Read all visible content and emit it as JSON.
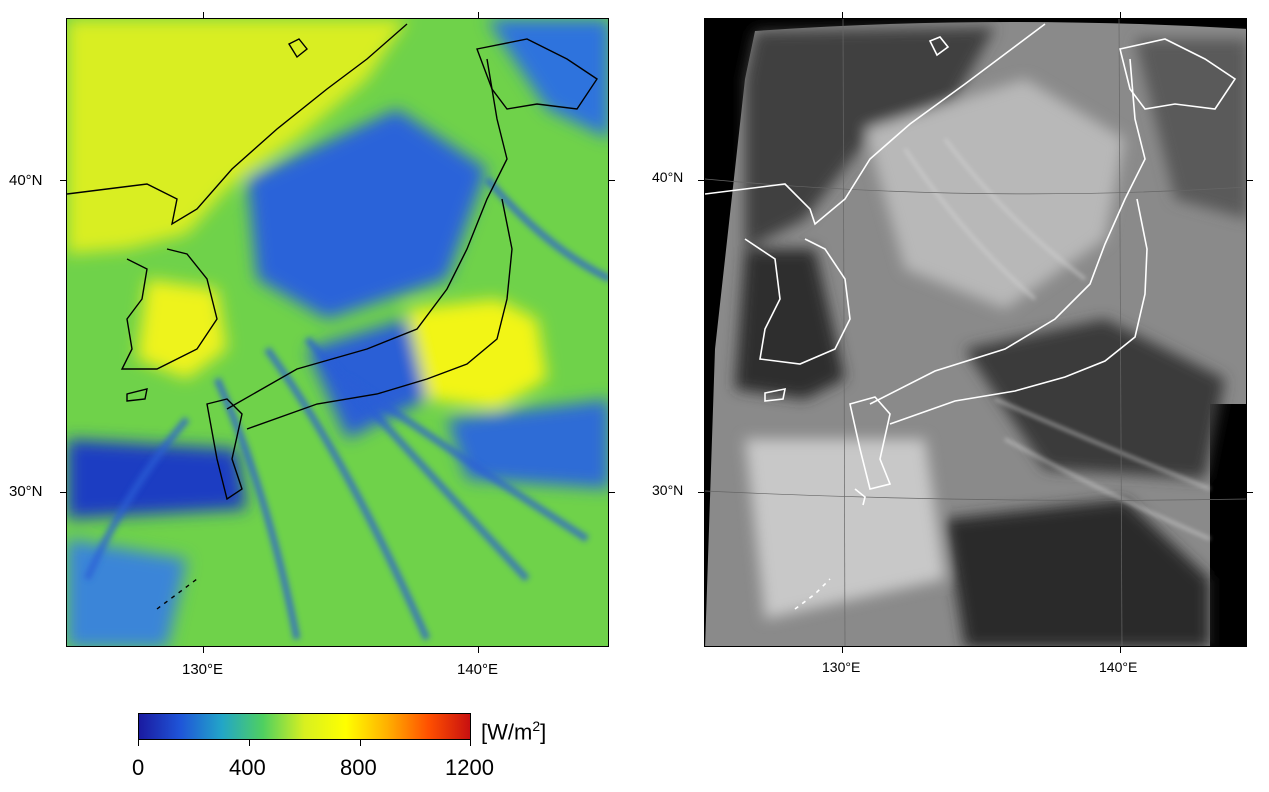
{
  "left_panel": {
    "lat_labels": [
      "40°N",
      "30°N"
    ],
    "lon_labels": [
      "130°E",
      "140°E"
    ]
  },
  "right_panel": {
    "lat_labels": [
      "40°N",
      "30°N"
    ],
    "lon_labels": [
      "130°E",
      "140°E"
    ]
  },
  "colorbar": {
    "unit_base": "[W/m",
    "unit_exp": "2",
    "unit_close": "]",
    "ticks": [
      "0",
      "400",
      "800",
      "1200"
    ],
    "range": [
      0,
      1200
    ],
    "colors": [
      "#1a1aa0",
      "#1f55d8",
      "#22a5c8",
      "#4fd060",
      "#d8f020",
      "#ffff00",
      "#ffb000",
      "#ff5000",
      "#c81010"
    ]
  }
}
